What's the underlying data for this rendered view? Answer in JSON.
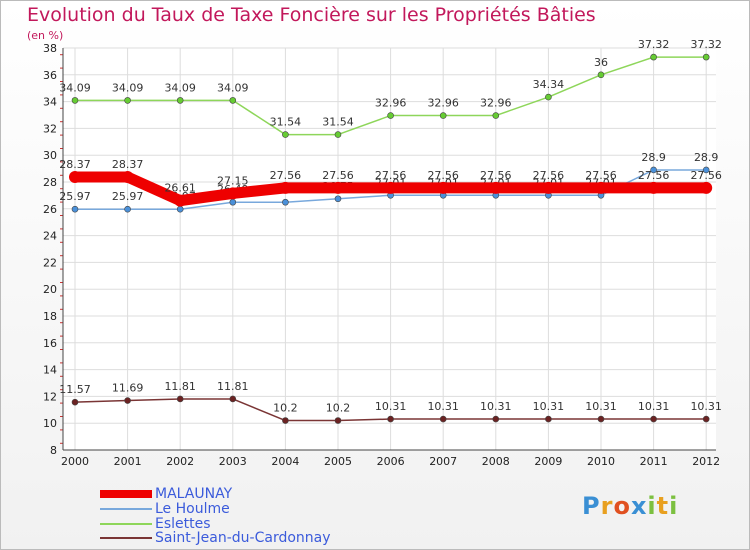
{
  "chart_data": {
    "type": "line",
    "title": "Evolution du Taux de Taxe Foncière sur les Propriétés Bâties",
    "ylabel": "(en %)",
    "xlabel": "",
    "ylim": [
      8,
      38
    ],
    "ytick_step": 2,
    "categories": [
      "2000",
      "2001",
      "2002",
      "2003",
      "2004",
      "2005",
      "2006",
      "2007",
      "2008",
      "2009",
      "2010",
      "2011",
      "2012"
    ],
    "series": [
      {
        "name": "Eslettes",
        "color": "#8ed65a",
        "marker": "#66cc33",
        "values": [
          34.09,
          34.09,
          34.09,
          34.09,
          31.54,
          31.54,
          32.96,
          32.96,
          32.96,
          34.34,
          36,
          37.32,
          37.32
        ],
        "labels": [
          "34.09",
          "34.09",
          "34.09",
          "34.09",
          "31.54",
          "31.54",
          "32.96",
          "32.96",
          "32.96",
          "34.34",
          "36",
          "37.32",
          "37.32"
        ]
      },
      {
        "name": "Le Houlme",
        "color": "#78a8dc",
        "marker": "#4a90d9",
        "values": [
          25.97,
          25.97,
          25.97,
          26.49,
          26.49,
          26.75,
          27.01,
          27.01,
          27.01,
          27.01,
          27.01,
          28.9,
          28.9
        ],
        "labels": [
          "25.97",
          "25.97",
          "25.97",
          "26.49",
          "26.49",
          "26.75",
          "27.01",
          "27.01",
          "27.01",
          "27.01",
          "27.01",
          "28.9",
          "28.9"
        ]
      },
      {
        "name": "MALAUNAY",
        "color": "#ee0000",
        "marker": "#ee0000",
        "values": [
          28.37,
          28.37,
          26.61,
          27.15,
          27.56,
          27.56,
          27.56,
          27.56,
          27.56,
          27.56,
          27.56,
          27.56,
          27.56
        ],
        "labels": [
          "28.37",
          "28.37",
          "26.61",
          "27.15",
          "27.56",
          "27.56",
          "27.56",
          "27.56",
          "27.56",
          "27.56",
          "27.56",
          "27.56",
          "27.56"
        ]
      },
      {
        "name": "Saint-Jean-du-Cardonnay",
        "color": "#7a3535",
        "marker": "#6b2222",
        "values": [
          11.57,
          11.69,
          11.81,
          11.81,
          10.2,
          10.2,
          10.31,
          10.31,
          10.31,
          10.31,
          10.31,
          10.31,
          10.31
        ],
        "labels": [
          "11.57",
          "11.69",
          "11.81",
          "11.81",
          "10.2",
          "10.2",
          "10.31",
          "10.31",
          "10.31",
          "10.31",
          "10.31",
          "10.31",
          "10.31"
        ]
      }
    ]
  },
  "legend": {
    "items": [
      {
        "name": "MALAUNAY",
        "color": "#ee0000"
      },
      {
        "name": "Le Houlme",
        "color": "#78a8dc"
      },
      {
        "name": "Eslettes",
        "color": "#8ed65a"
      },
      {
        "name": "Saint-Jean-du-Cardonnay",
        "color": "#7a3535"
      }
    ]
  },
  "logo": {
    "text": "Proxiti",
    "letters": [
      {
        "ch": "P",
        "color": "#3a8fd4"
      },
      {
        "ch": "r",
        "color": "#e8a020"
      },
      {
        "ch": "o",
        "color": "#e05020"
      },
      {
        "ch": "x",
        "color": "#3a8fd4"
      },
      {
        "ch": "i",
        "color": "#7cc040"
      },
      {
        "ch": "t",
        "color": "#e8a020"
      },
      {
        "ch": "i",
        "color": "#7cc040"
      }
    ]
  }
}
